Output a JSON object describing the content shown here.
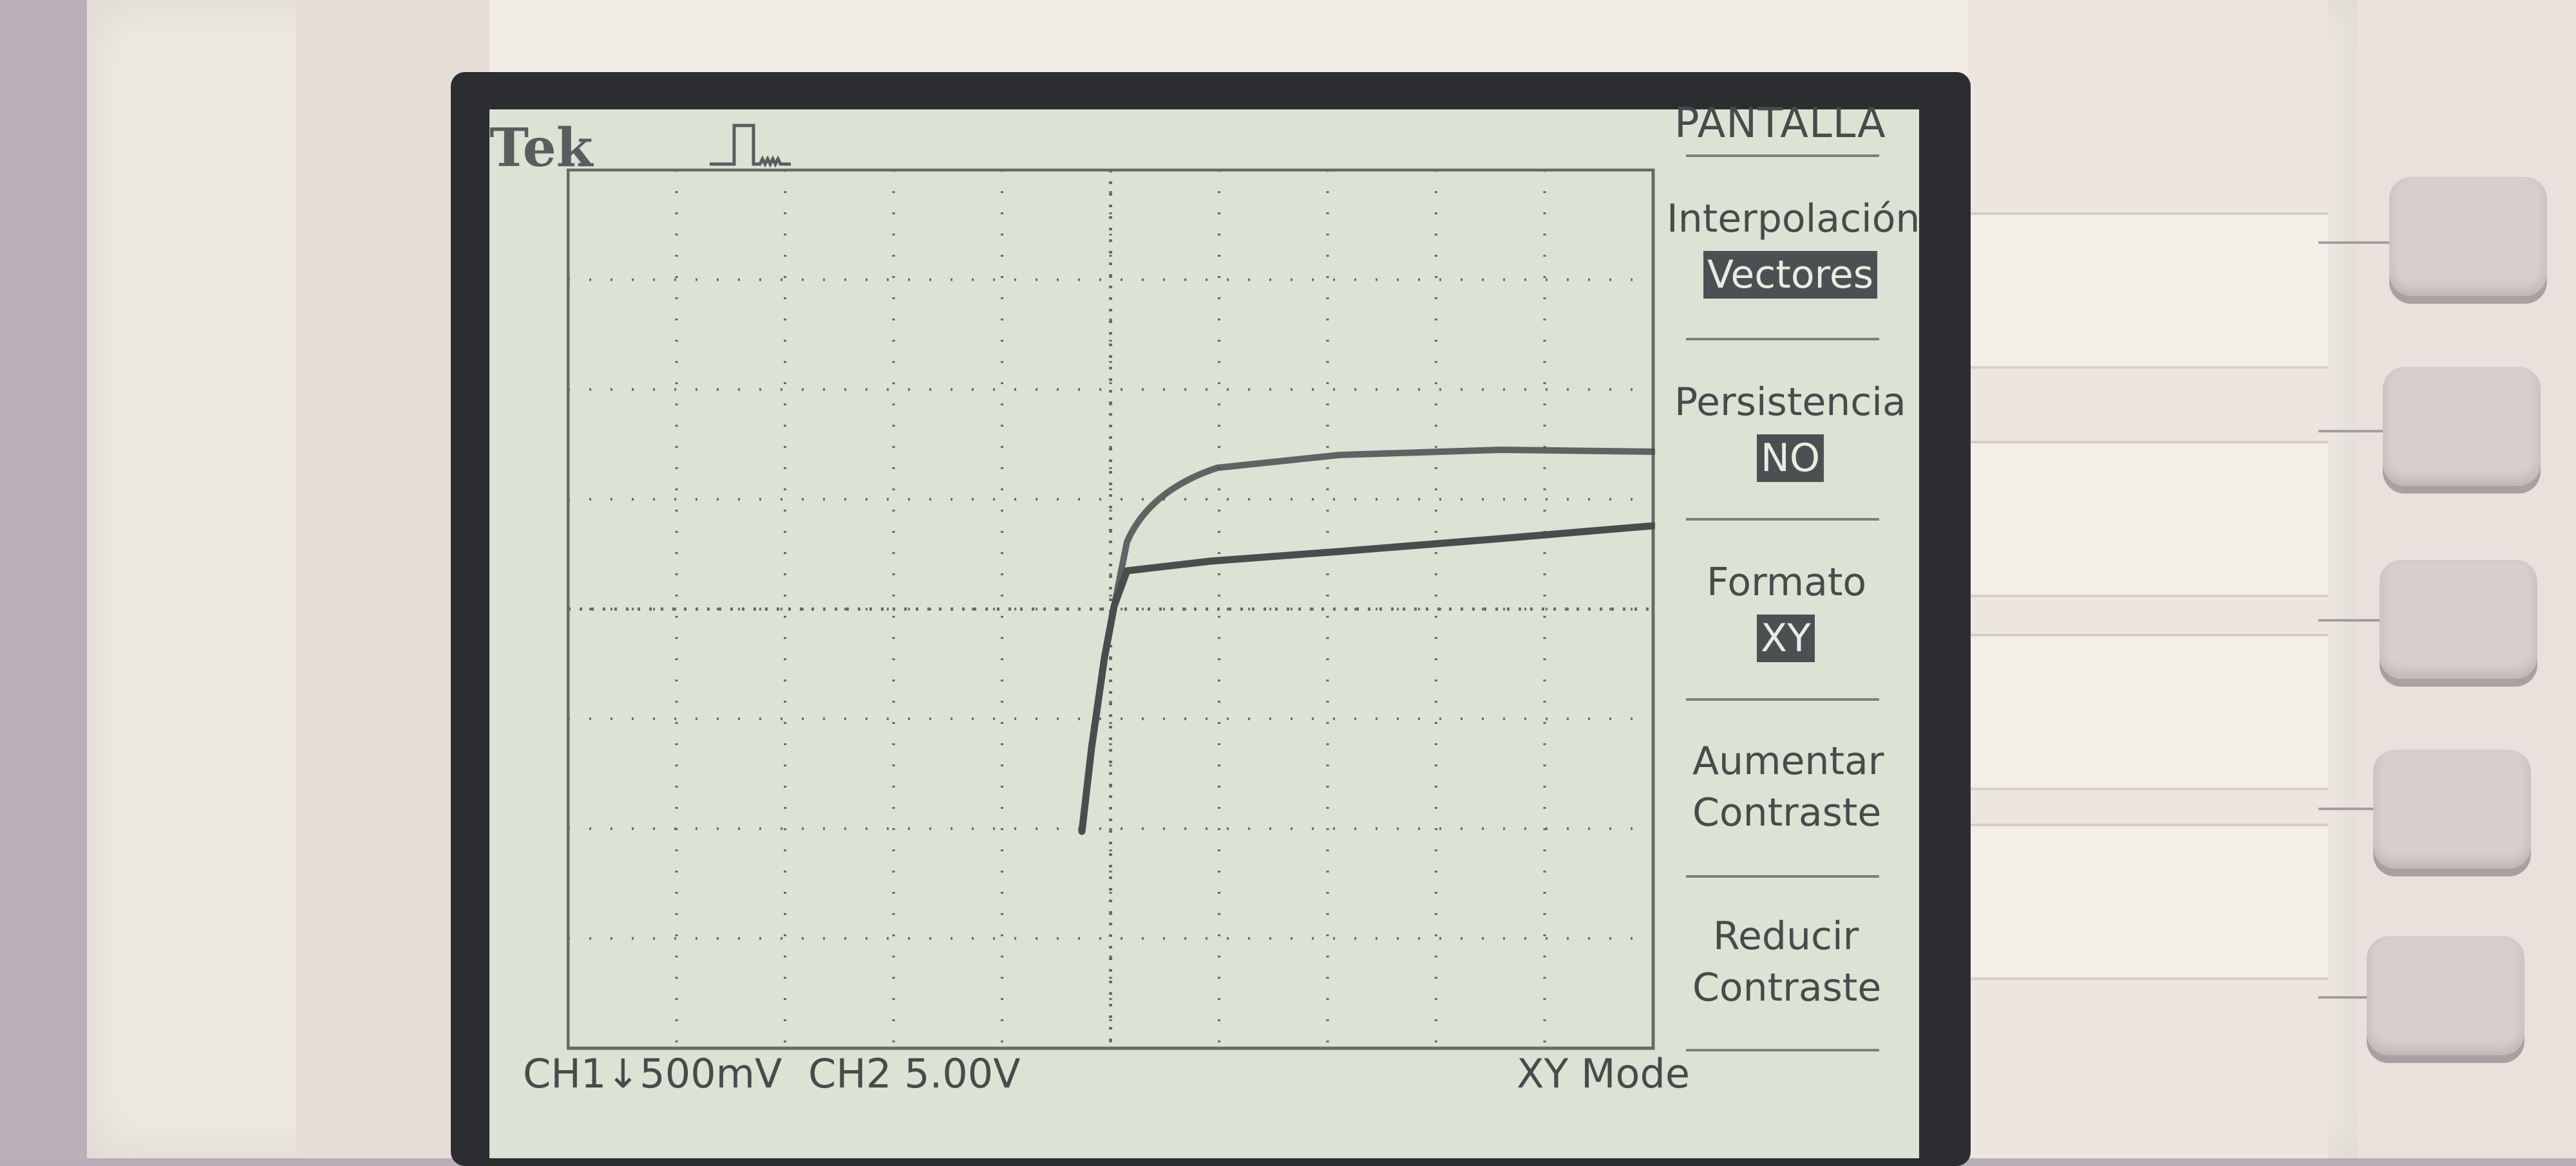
{
  "scope": {
    "brand": "Tek",
    "trigger_icon": "pulse-trigger-icon",
    "status": {
      "ch1": "CH1↓500mV",
      "ch2": "CH2  5.00V",
      "mode": "XY Mode"
    }
  },
  "menu": {
    "title": "PANTALLA",
    "items": [
      {
        "label": "Interpolación",
        "value": "Vectores"
      },
      {
        "label": "Persistencia",
        "value": "NO"
      },
      {
        "label": "Formato",
        "value": "XY"
      },
      {
        "label_line1": "Aumentar",
        "label_line2": "Contraste"
      },
      {
        "label_line1": "Reducir",
        "label_line2": "Contraste"
      }
    ]
  },
  "colors": {
    "screen": "#dbe3d4",
    "trace": "#4a4c4e",
    "grid": "#666b68",
    "bezel": "#eee8e2"
  }
}
